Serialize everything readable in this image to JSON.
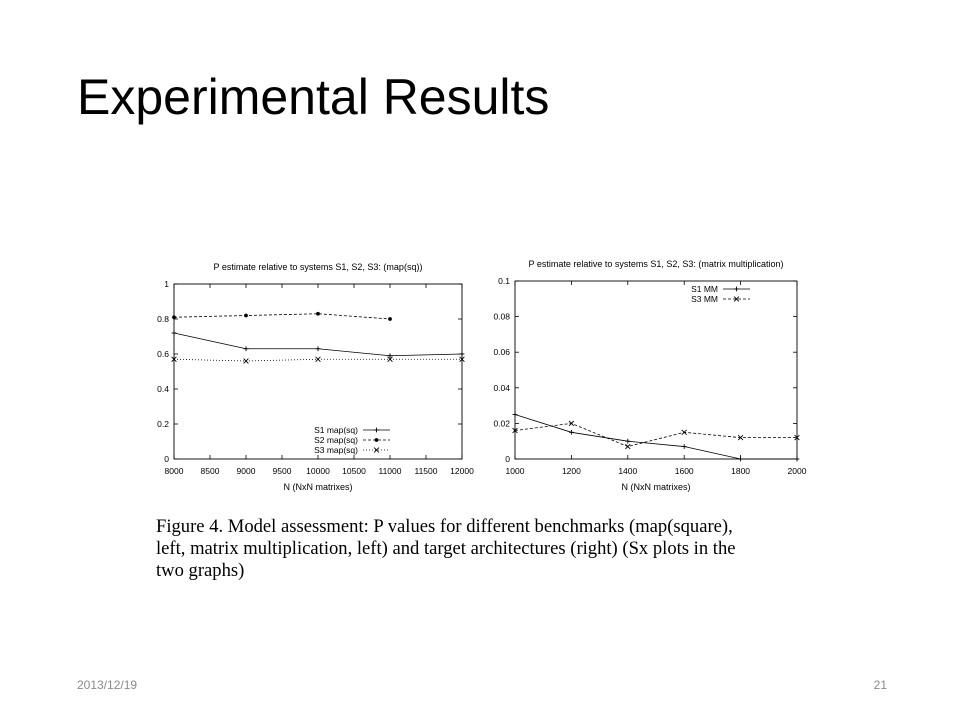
{
  "slide": {
    "title": "Experimental Results",
    "footer_date": "2013/12/19",
    "page_number": "21"
  },
  "caption": {
    "lines": [
      "Figure 4.   Model assessment: P values for different benchmarks (map(square),",
      "left, matrix multiplication, left) and target architectures (right) (Sx plots in the",
      "two graphs)"
    ]
  },
  "chart_data": [
    {
      "type": "line",
      "title": "P estimate relative to systems S1, S2, S3:  (map(sq))",
      "xlabel": "N (NxN matrixes)",
      "ylabel": "",
      "xlim": [
        8000,
        12000
      ],
      "ylim": [
        0,
        1
      ],
      "xticks": [
        "8000",
        "8500",
        "9000",
        "9500",
        "10000",
        "10500",
        "11000",
        "11500",
        "12000"
      ],
      "yticks": [
        "0",
        "0.2",
        "0.4",
        "0.6",
        "0.8",
        "1"
      ],
      "legend_position": "bottom-right",
      "grid": false,
      "series": [
        {
          "name": "S1 map(sq)",
          "style": "solid",
          "marker": "+",
          "x": [
            8000,
            9000,
            10000,
            11000,
            12000
          ],
          "y": [
            0.72,
            0.63,
            0.63,
            0.59,
            0.6
          ]
        },
        {
          "name": "S2 map(sq)",
          "style": "dashed",
          "marker": "dot",
          "x": [
            8000,
            9000,
            10000,
            11000
          ],
          "y": [
            0.81,
            0.82,
            0.83,
            0.8
          ]
        },
        {
          "name": "S3 map(sq)",
          "style": "dotted",
          "marker": "x",
          "x": [
            8000,
            9000,
            10000,
            11000,
            12000
          ],
          "y": [
            0.57,
            0.56,
            0.57,
            0.57,
            0.57
          ]
        }
      ]
    },
    {
      "type": "line",
      "title": "P estimate relative to systems S1, S2, S3:  (matrix multiplication)",
      "xlabel": "N (NxN matrixes)",
      "ylabel": "",
      "xlim": [
        1000,
        2000
      ],
      "ylim": [
        0,
        0.1
      ],
      "xticks": [
        "1000",
        "1200",
        "1400",
        "1600",
        "1800",
        "2000"
      ],
      "yticks": [
        "0",
        "0.02",
        "0.04",
        "0.06",
        "0.08",
        "0.1"
      ],
      "legend_position": "top-right",
      "grid": false,
      "series": [
        {
          "name": "S1 MM",
          "style": "solid",
          "marker": "+",
          "x": [
            1000,
            1200,
            1400,
            1600,
            1800,
            2000
          ],
          "y": [
            0.025,
            0.015,
            0.01,
            0.007,
            0.0,
            0.0
          ]
        },
        {
          "name": "S3 MM",
          "style": "dashed",
          "marker": "x",
          "x": [
            1000,
            1200,
            1400,
            1600,
            1800,
            2000
          ],
          "y": [
            0.016,
            0.02,
            0.007,
            0.015,
            0.012,
            0.012
          ]
        }
      ]
    }
  ]
}
